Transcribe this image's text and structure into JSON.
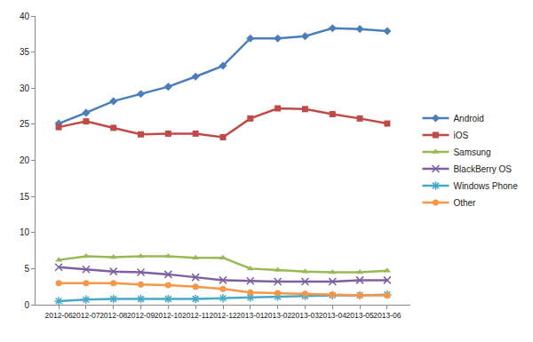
{
  "chart_data": {
    "type": "line",
    "categories": [
      "2012-06",
      "2012-07",
      "2012-08",
      "2012-09",
      "2012-10",
      "2012-11",
      "2012-12",
      "2013-01",
      "2013-02",
      "2013-03",
      "2013-04",
      "2013-05",
      "2013-06"
    ],
    "series": [
      {
        "name": "Android",
        "color": "#4a7ebb",
        "marker": "diamond",
        "values": [
          25.1,
          26.6,
          28.2,
          29.2,
          30.2,
          31.6,
          33.1,
          36.9,
          36.9,
          37.2,
          38.3,
          38.2,
          37.9
        ]
      },
      {
        "name": "iOS",
        "color": "#be4b48",
        "marker": "square",
        "values": [
          24.6,
          25.4,
          24.5,
          23.6,
          23.7,
          23.7,
          23.2,
          25.8,
          27.2,
          27.1,
          26.4,
          25.8,
          25.1
        ]
      },
      {
        "name": "Samsung",
        "color": "#98b954",
        "marker": "triangle",
        "values": [
          6.2,
          6.7,
          6.6,
          6.7,
          6.7,
          6.5,
          6.5,
          5.0,
          4.8,
          4.6,
          4.5,
          4.5,
          4.7
        ]
      },
      {
        "name": "BlackBerry OS",
        "color": "#7d60a0",
        "marker": "x",
        "values": [
          5.2,
          4.9,
          4.6,
          4.5,
          4.2,
          3.8,
          3.4,
          3.3,
          3.2,
          3.2,
          3.2,
          3.4,
          3.4
        ]
      },
      {
        "name": "Windows Phone",
        "color": "#46aac5",
        "marker": "star",
        "values": [
          0.5,
          0.7,
          0.8,
          0.8,
          0.8,
          0.8,
          0.9,
          1.0,
          1.1,
          1.2,
          1.3,
          1.3,
          1.4
        ]
      },
      {
        "name": "Other",
        "color": "#f79646",
        "marker": "circle",
        "values": [
          3.0,
          3.0,
          3.0,
          2.8,
          2.7,
          2.5,
          2.2,
          1.7,
          1.6,
          1.5,
          1.4,
          1.3,
          1.3
        ]
      }
    ],
    "ylim": [
      0,
      40
    ],
    "yticks": [
      0,
      5,
      10,
      15,
      20,
      25,
      30,
      35,
      40
    ],
    "grid": false,
    "legend": "right"
  }
}
